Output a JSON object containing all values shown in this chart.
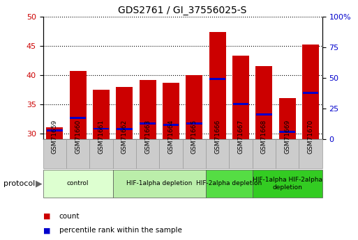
{
  "title": "GDS2761 / GI_37556025-S",
  "samples": [
    "GSM71659",
    "GSM71660",
    "GSM71661",
    "GSM71662",
    "GSM71663",
    "GSM71664",
    "GSM71665",
    "GSM71666",
    "GSM71667",
    "GSM71668",
    "GSM71669",
    "GSM71670"
  ],
  "count_values": [
    31.1,
    40.7,
    37.5,
    38.0,
    39.2,
    38.7,
    40.0,
    47.4,
    43.3,
    41.6,
    36.0,
    45.2
  ],
  "percentile_values": [
    30.5,
    32.7,
    30.8,
    30.7,
    31.7,
    31.5,
    31.7,
    39.3,
    35.0,
    33.2,
    30.3,
    36.9
  ],
  "ylim_left": [
    29,
    50
  ],
  "ylim_right": [
    0,
    100
  ],
  "yticks_left": [
    30,
    35,
    40,
    45,
    50
  ],
  "yticks_right": [
    0,
    25,
    50,
    75,
    100
  ],
  "color_count": "#cc0000",
  "color_percentile": "#0000cc",
  "bar_width": 0.72,
  "groups": [
    {
      "label": "control",
      "samples": [
        0,
        1,
        2
      ],
      "color": "#ddffd0"
    },
    {
      "label": "HIF-1alpha depletion",
      "samples": [
        3,
        4,
        5,
        6
      ],
      "color": "#bbeeaa"
    },
    {
      "label": "HIF-2alpha depletion",
      "samples": [
        7,
        8
      ],
      "color": "#55dd44"
    },
    {
      "label": "HIF-1alpha HIF-2alpha\ndepletion",
      "samples": [
        9,
        10,
        11
      ],
      "color": "#33cc22"
    }
  ],
  "color_ylabel_left": "#cc0000",
  "color_ylabel_right": "#0000cc",
  "tick_label_bg": "#cccccc",
  "protocol_label_color": "#666666"
}
